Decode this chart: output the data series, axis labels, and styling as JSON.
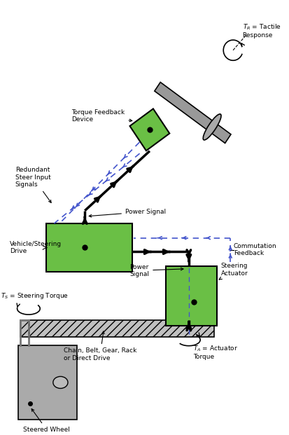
{
  "bg_color": "#ffffff",
  "green_color": "#6abf45",
  "gray_box": "#999999",
  "gray_rack": "#c0c0c0",
  "gray_shaft": "#888888",
  "black": "#000000",
  "blue": "#4455cc",
  "fig_width": 4.13,
  "fig_height": 6.21,
  "dpi": 100,
  "labels": {
    "torque_feedback": "Torque Feedback\nDevice",
    "redundant_steer": "Redundant\nSteer Input\nSignals",
    "power_signal_upper": "Power Signal",
    "vehicle_steering": "Vehicle/Steering\nDrive",
    "commutation": "Commutation\nFeedback",
    "power_signal_lower": "Power\nSignal",
    "steering_actuator": "Steering\nActuator",
    "ts_label": "$T_S$ = Steering Torque",
    "ta_label": "$T_A$ = Actuator\nTorque",
    "tr_label": "$T_R$ = Tactile\nResponse",
    "chain_belt": "Chain, Belt, Gear, Rack\nor Direct Drive",
    "steered_wheel": "Steered Wheel"
  }
}
